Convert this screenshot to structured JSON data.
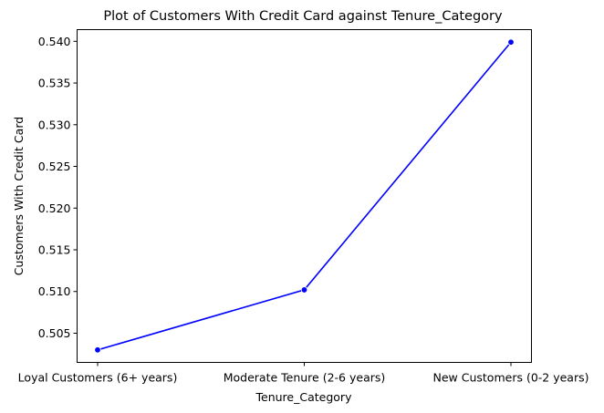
{
  "chart_data": {
    "type": "line",
    "title": "Plot of Customers With Credit Card against Tenure_Category",
    "xlabel": "Tenure_Category",
    "ylabel": "Customers With Credit Card",
    "categories": [
      "Loyal Customers (6+ years)",
      "Moderate Tenure (2-6 years)",
      "New Customers (0-2 years)"
    ],
    "series": [
      {
        "values": [
          0.503,
          0.5102,
          0.5399
        ],
        "color": "#0000ff",
        "marker": "circle"
      }
    ],
    "yticks": [
      "0.505",
      "0.510",
      "0.515",
      "0.520",
      "0.525",
      "0.530",
      "0.535",
      "0.540"
    ],
    "ylim": [
      0.5015,
      0.5414
    ],
    "grid": false,
    "legend": "none"
  }
}
